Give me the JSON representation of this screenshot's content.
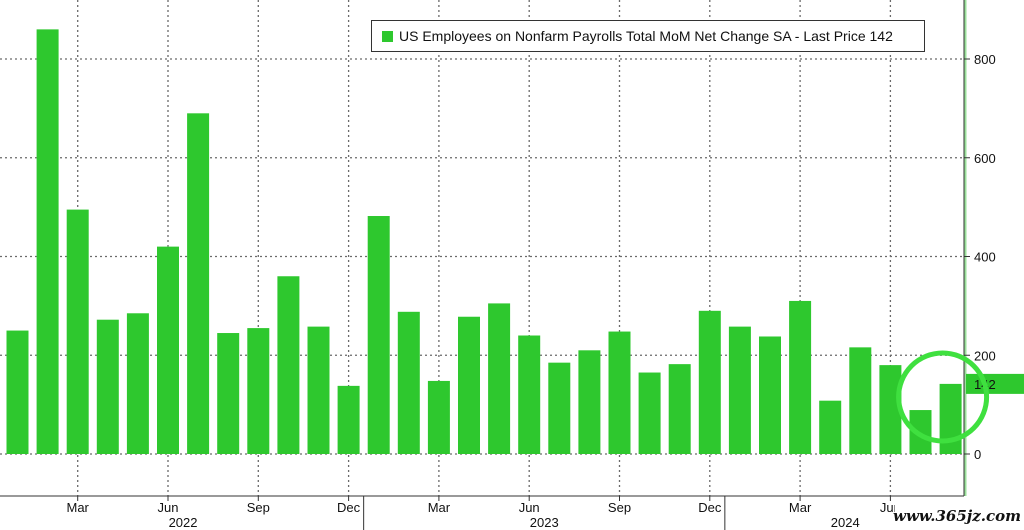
{
  "colors": {
    "bar": "#2ec82e",
    "grid": "#6a6a6a",
    "axis": "#333333",
    "highlight": "#3fe03f",
    "last_tag": "#2ec82e"
  },
  "legend": {
    "label": "US Employees on Nonfarm Payrolls Total MoM Net Change SA - Last Price 142"
  },
  "last_price": {
    "label": "142",
    "value": 142
  },
  "watermark": {
    "text": "www.365jz.com"
  },
  "chart_data": {
    "type": "bar",
    "title": "",
    "xlabel": "",
    "ylabel": "",
    "ylim": [
      -80,
      900
    ],
    "y_ticks": [
      0,
      200,
      400,
      600,
      800
    ],
    "y_tick_labels": [
      "0",
      "200",
      "400",
      "600",
      "800"
    ],
    "y_axis_side": "right",
    "grid": true,
    "legend_position": "top-right",
    "categories": [
      "Jan 2022",
      "Feb 2022",
      "Mar 2022",
      "Apr 2022",
      "May 2022",
      "Jun 2022",
      "Jul 2022",
      "Aug 2022",
      "Sep 2022",
      "Oct 2022",
      "Nov 2022",
      "Dec 2022",
      "Jan 2023",
      "Feb 2023",
      "Mar 2023",
      "Apr 2023",
      "May 2023",
      "Jun 2023",
      "Jul 2023",
      "Aug 2023",
      "Sep 2023",
      "Oct 2023",
      "Nov 2023",
      "Dec 2023",
      "Jan 2024",
      "Feb 2024",
      "Mar 2024",
      "Apr 2024",
      "May 2024",
      "Jun 2024",
      "Jul 2024",
      "Aug 2024"
    ],
    "series": [
      {
        "name": "US Employees on Nonfarm Payrolls Total MoM Net Change SA",
        "values": [
          250,
          860,
          495,
          272,
          285,
          420,
          690,
          245,
          255,
          360,
          258,
          138,
          482,
          288,
          148,
          278,
          305,
          240,
          185,
          210,
          248,
          165,
          182,
          290,
          258,
          238,
          310,
          108,
          216,
          180,
          89,
          142
        ]
      }
    ],
    "x_month_labels": [
      {
        "text": "Mar",
        "index": 2
      },
      {
        "text": "Jun",
        "index": 5
      },
      {
        "text": "Sep",
        "index": 8
      },
      {
        "text": "Dec",
        "index": 11
      },
      {
        "text": "Mar",
        "index": 14
      },
      {
        "text": "Jun",
        "index": 17
      },
      {
        "text": "Sep",
        "index": 20
      },
      {
        "text": "Dec",
        "index": 23
      },
      {
        "text": "Mar",
        "index": 26
      },
      {
        "text": "Jun",
        "index": 29
      }
    ],
    "x_year_labels": [
      {
        "text": "2022",
        "start": 0,
        "end": 11
      },
      {
        "text": "2023",
        "start": 12,
        "end": 23
      },
      {
        "text": "2024",
        "start": 24,
        "end": 31
      }
    ],
    "annotations": [
      {
        "type": "circle",
        "around_index": 31,
        "color": "#3fe03f"
      }
    ]
  }
}
